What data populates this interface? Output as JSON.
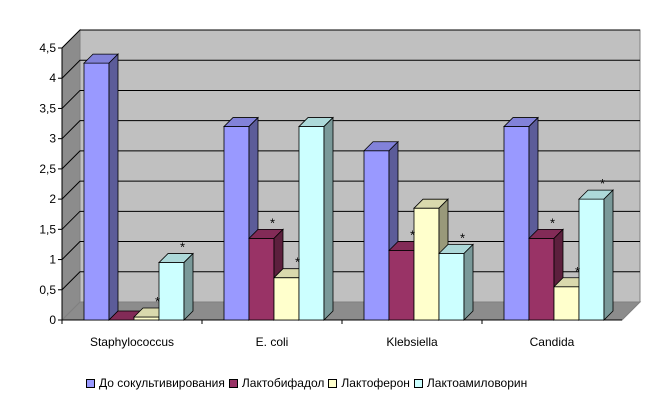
{
  "chart_data": {
    "type": "bar",
    "ylim": [
      0,
      4.5
    ],
    "ytick_step": 0.5,
    "yticks": [
      "0",
      "0,5",
      "1",
      "1,5",
      "2",
      "2,5",
      "3",
      "3,5",
      "4",
      "4,5"
    ],
    "categories": [
      "Staphylococcus",
      "E. coli",
      "Klebsiella",
      "Candida"
    ],
    "series": [
      {
        "name": "До сокультивирования",
        "color": "#9999ff",
        "values": [
          4.25,
          3.2,
          2.8,
          3.2
        ],
        "stars": [
          false,
          false,
          false,
          false
        ]
      },
      {
        "name": "Лактобифадол",
        "color": "#993366",
        "values": [
          0.0,
          1.35,
          1.15,
          1.35
        ],
        "stars": [
          false,
          true,
          true,
          true
        ]
      },
      {
        "name": "Лактоферон",
        "color": "#ffffcc",
        "values": [
          0.05,
          0.7,
          1.85,
          0.55
        ],
        "stars": [
          true,
          true,
          false,
          true
        ]
      },
      {
        "name": "Лактоамиловорин",
        "color": "#ccffff",
        "values": [
          0.95,
          3.2,
          1.1,
          2.0
        ],
        "stars": [
          true,
          false,
          true,
          true
        ]
      }
    ],
    "significance_mark": "*",
    "grid": true,
    "legend_position": "bottom"
  }
}
